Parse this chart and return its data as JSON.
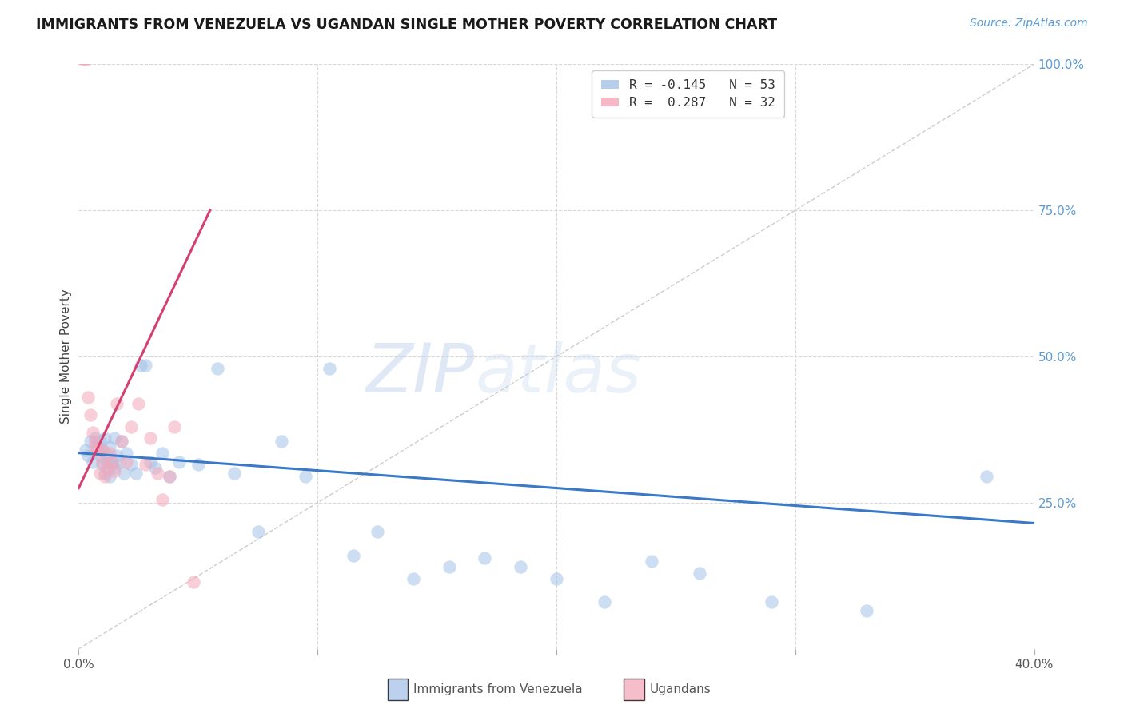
{
  "title": "IMMIGRANTS FROM VENEZUELA VS UGANDAN SINGLE MOTHER POVERTY CORRELATION CHART",
  "source": "Source: ZipAtlas.com",
  "ylabel": "Single Mother Poverty",
  "xmin": 0.0,
  "xmax": 0.4,
  "ymin": 0.0,
  "ymax": 1.0,
  "watermark_zip": "ZIP",
  "watermark_atlas": "atlas",
  "blue_R": "-0.145",
  "blue_N": "53",
  "pink_R": "0.287",
  "pink_N": "32",
  "blue_color": "#a4c2e8",
  "pink_color": "#f4a7b9",
  "blue_line_color": "#3a78c8",
  "pink_line_color": "#d44070",
  "grid_color": "#d8d8d8",
  "background_color": "#ffffff",
  "blue_label": "Immigrants from Venezuela",
  "pink_label": "Ugandans",
  "blue_x": [
    0.003,
    0.004,
    0.005,
    0.006,
    0.007,
    0.008,
    0.009,
    0.009,
    0.01,
    0.01,
    0.011,
    0.011,
    0.012,
    0.012,
    0.013,
    0.013,
    0.014,
    0.015,
    0.015,
    0.016,
    0.017,
    0.018,
    0.019,
    0.02,
    0.022,
    0.024,
    0.026,
    0.028,
    0.03,
    0.032,
    0.035,
    0.038,
    0.042,
    0.05,
    0.058,
    0.065,
    0.075,
    0.085,
    0.095,
    0.105,
    0.115,
    0.125,
    0.14,
    0.155,
    0.17,
    0.185,
    0.2,
    0.22,
    0.24,
    0.26,
    0.29,
    0.33,
    0.38
  ],
  "blue_y": [
    0.34,
    0.33,
    0.355,
    0.32,
    0.36,
    0.345,
    0.33,
    0.355,
    0.315,
    0.34,
    0.3,
    0.36,
    0.32,
    0.33,
    0.295,
    0.345,
    0.315,
    0.36,
    0.31,
    0.33,
    0.32,
    0.355,
    0.3,
    0.335,
    0.315,
    0.3,
    0.485,
    0.485,
    0.32,
    0.31,
    0.335,
    0.295,
    0.32,
    0.315,
    0.48,
    0.3,
    0.2,
    0.355,
    0.295,
    0.48,
    0.16,
    0.2,
    0.12,
    0.14,
    0.155,
    0.14,
    0.12,
    0.08,
    0.15,
    0.13,
    0.08,
    0.065,
    0.295
  ],
  "pink_x": [
    0.001,
    0.002,
    0.002,
    0.003,
    0.003,
    0.004,
    0.004,
    0.005,
    0.006,
    0.007,
    0.007,
    0.008,
    0.009,
    0.01,
    0.01,
    0.011,
    0.012,
    0.013,
    0.014,
    0.015,
    0.016,
    0.018,
    0.02,
    0.022,
    0.025,
    0.028,
    0.03,
    0.033,
    0.035,
    0.038,
    0.04,
    0.048
  ],
  "pink_y": [
    1.01,
    1.01,
    1.01,
    1.01,
    1.01,
    1.01,
    0.43,
    0.4,
    0.37,
    0.355,
    0.345,
    0.34,
    0.3,
    0.32,
    0.34,
    0.295,
    0.31,
    0.335,
    0.32,
    0.305,
    0.42,
    0.355,
    0.32,
    0.38,
    0.42,
    0.315,
    0.36,
    0.3,
    0.255,
    0.295,
    0.38,
    0.115
  ],
  "blue_trend_x": [
    0.0,
    0.4
  ],
  "blue_trend_y": [
    0.335,
    0.215
  ],
  "pink_trend_x": [
    0.0,
    0.055
  ],
  "pink_trend_y": [
    0.275,
    0.75
  ]
}
